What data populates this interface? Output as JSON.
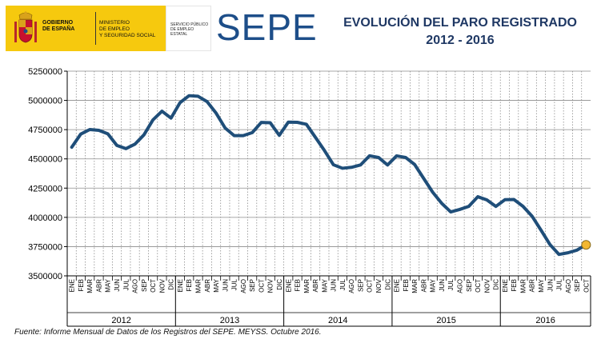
{
  "header": {
    "gov_name": "GOBIERNO\nDE ESPAÑA",
    "ministry": "MINISTERIO\nDE EMPLEO\nY SEGURIDAD SOCIAL",
    "service": "SERVICIO PÚBLICO\nDE EMPLEO ESTATAL",
    "logo": "SEPE"
  },
  "colors": {
    "line": "#1f4e79",
    "marker": "#f2b731",
    "grid": "#8c8c8c",
    "axis": "#000000",
    "brand_yellow": "#f6c90e",
    "logo_blue": "#1d4e89"
  },
  "chart_data": {
    "type": "line",
    "title": "EVOLUCIÓN DEL PARO REGISTRADO",
    "subtitle": "2012 - 2016",
    "xlabel": "",
    "ylabel": "",
    "ylim": [
      3500000,
      5250000
    ],
    "yticks": [
      3500000,
      3750000,
      4000000,
      4250000,
      4500000,
      4750000,
      5000000,
      5250000
    ],
    "ytick_labels": [
      "3500000",
      "3750000",
      "4000000",
      "4250000",
      "4500000",
      "4750000",
      "5000000",
      "5250000"
    ],
    "grid": true,
    "months": [
      "ENE",
      "FEB",
      "MAR",
      "ABR",
      "MAY",
      "JUN",
      "JUL",
      "AGO",
      "SEP",
      "OCT",
      "NOV",
      "DIC"
    ],
    "years": [
      {
        "label": "2012",
        "months": 12
      },
      {
        "label": "2013",
        "months": 12
      },
      {
        "label": "2014",
        "months": 12
      },
      {
        "label": "2015",
        "months": 12
      },
      {
        "label": "2016",
        "months": 10
      }
    ],
    "series": [
      {
        "values": [
          4599829,
          4712098,
          4750867,
          4744235,
          4714122,
          4615269,
          4587455,
          4625634,
          4705279,
          4833521,
          4907817,
          4848723,
          4980778,
          5040222,
          5035243,
          4989193,
          4890928,
          4763680,
          4698814,
          4698783,
          4724355,
          4811383,
          4808908,
          4701338,
          4814435,
          4812486,
          4795866,
          4684643,
          4572385,
          4449701,
          4419860,
          4427930,
          4447650,
          4526204,
          4512153,
          4447711,
          4525691,
          4512116,
          4451939,
          4333016,
          4215031,
          4120304,
          4046276,
          4067955,
          4094042,
          4176369,
          4149298,
          4093508,
          4150710,
          4152986,
          4094770,
          4011171,
          3891403,
          3767054,
          3683061,
          3697496,
          3720297,
          3764982
        ]
      }
    ],
    "highlight_last": true
  },
  "footer": {
    "source": "Fuente: Informe Mensual de Datos de los Registros del SEPE. MEYSS. Octubre 2016."
  }
}
